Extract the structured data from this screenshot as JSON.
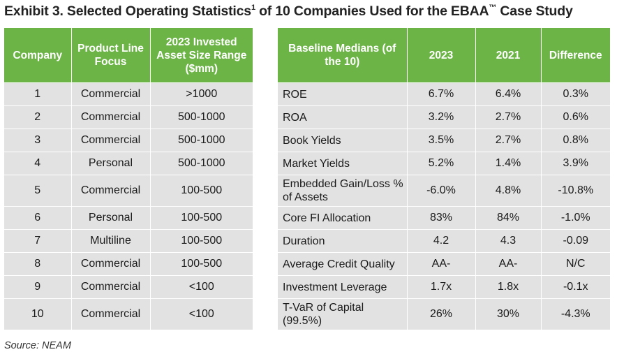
{
  "title": {
    "prefix": "Exhibit 3. Selected Operating Statistics",
    "footnote_mark": "1",
    "middle": " of 10 Companies Used for the EBAA",
    "tm": "™",
    "suffix": " Case Study"
  },
  "left_table": {
    "headers": [
      "Company",
      "Product Line Focus",
      "2023 Invested Asset Size Range ($mm)"
    ],
    "rows": [
      [
        "1",
        "Commercial",
        ">1000"
      ],
      [
        "2",
        "Commercial",
        "500-1000"
      ],
      [
        "3",
        "Commercial",
        "500-1000"
      ],
      [
        "4",
        "Personal",
        "500-1000"
      ],
      [
        "5",
        "Commercial",
        "100-500"
      ],
      [
        "6",
        "Personal",
        "100-500"
      ],
      [
        "7",
        "Multiline",
        "100-500"
      ],
      [
        "8",
        "Commercial",
        "100-500"
      ],
      [
        "9",
        "Commercial",
        "<100"
      ],
      [
        "10",
        "Commercial",
        "<100"
      ]
    ]
  },
  "right_table": {
    "headers": [
      "Baseline Medians (of the 10)",
      "2023",
      "2021",
      "Difference"
    ],
    "rows": [
      [
        "ROE",
        "6.7%",
        "6.4%",
        "0.3%"
      ],
      [
        "ROA",
        "3.2%",
        "2.7%",
        "0.6%"
      ],
      [
        "Book Yields",
        "3.5%",
        "2.7%",
        "0.8%"
      ],
      [
        "Market Yields",
        "5.2%",
        "1.4%",
        "3.9%"
      ],
      [
        "Embedded Gain/Loss % of Assets",
        "-6.0%",
        "4.8%",
        "-10.8%"
      ],
      [
        "Core FI Allocation",
        "83%",
        "84%",
        "-1.0%"
      ],
      [
        "Duration",
        "4.2",
        "4.3",
        "-0.09"
      ],
      [
        "Average Credit Quality",
        "AA-",
        "AA-",
        "N/C"
      ],
      [
        "Investment Leverage",
        "1.7x",
        "1.8x",
        "-0.1x"
      ],
      [
        "T-VaR of Capital (99.5%)",
        "26%",
        "30%",
        "-4.3%"
      ]
    ]
  },
  "source": "Source: NEAM",
  "colors": {
    "header_green": "#6bb445",
    "cell_gray": "#e2e2e2"
  }
}
